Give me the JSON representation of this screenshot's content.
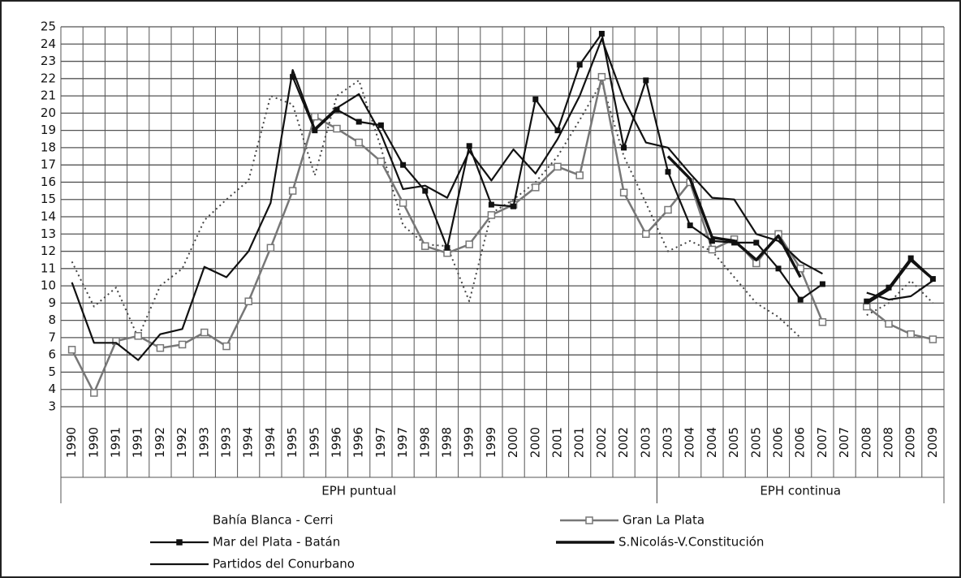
{
  "chart_data": {
    "type": "line",
    "categories": [
      "1990",
      "1990",
      "1991",
      "1991",
      "1992",
      "1992",
      "1993",
      "1993",
      "1994",
      "1994",
      "1995",
      "1995",
      "1996",
      "1996",
      "1997",
      "1997",
      "1998",
      "1998",
      "1999",
      "1999",
      "2000",
      "2000",
      "2001",
      "2001",
      "2002",
      "2002",
      "2003",
      "2003",
      "2004",
      "2004",
      "2005",
      "2005",
      "2006",
      "2006",
      "2007",
      "2007",
      "2008",
      "2008",
      "2009",
      "2009"
    ],
    "x_groups": [
      "EPH puntual",
      "EPH puntual",
      "EPH puntual",
      "EPH puntual",
      "EPH puntual",
      "EPH puntual",
      "EPH puntual",
      "EPH puntual",
      "EPH puntual",
      "EPH puntual",
      "EPH puntual",
      "EPH puntual",
      "EPH puntual",
      "EPH puntual",
      "EPH puntual",
      "EPH puntual",
      "EPH puntual",
      "EPH puntual",
      "EPH puntual",
      "EPH puntual",
      "EPH puntual",
      "EPH puntual",
      "EPH puntual",
      "EPH puntual",
      "EPH puntual",
      "EPH puntual",
      "EPH puntual",
      "EPH continua",
      "EPH continua",
      "EPH continua",
      "EPH continua",
      "EPH continua",
      "EPH continua",
      "EPH continua",
      "EPH continua",
      "EPH continua",
      "EPH continua",
      "EPH continua",
      "EPH continua",
      "EPH continua"
    ],
    "ylim": [
      3,
      25
    ],
    "yticks": [
      3,
      4,
      5,
      6,
      7,
      8,
      9,
      10,
      11,
      12,
      13,
      14,
      15,
      16,
      17,
      18,
      19,
      20,
      21,
      22,
      23,
      24,
      25
    ],
    "grid": true,
    "series": [
      {
        "name": "Bahía Blanca - Cerri",
        "color": "#444444",
        "dash": "2,4",
        "width": 2,
        "marker": "none",
        "values": [
          11.4,
          8.8,
          9.9,
          7.0,
          10.0,
          11.0,
          13.8,
          15.0,
          16.1,
          21.0,
          20.5,
          16.4,
          21.0,
          21.9,
          18.0,
          13.5,
          12.4,
          12.3,
          9.1,
          14.2,
          15.0,
          16.0,
          17.5,
          19.6,
          21.8,
          17.5,
          14.8,
          12.0,
          12.6,
          12.0,
          10.5,
          9.0,
          8.2,
          7.0,
          null,
          null,
          8.3,
          9.0,
          10.3,
          9.0
        ]
      },
      {
        "name": "Gran La Plata",
        "color": "#777777",
        "dash": "none",
        "width": 2.5,
        "marker": "open-square",
        "values": [
          6.3,
          3.8,
          6.8,
          7.1,
          6.4,
          6.6,
          7.3,
          6.5,
          9.1,
          12.2,
          15.5,
          19.8,
          19.1,
          18.3,
          17.2,
          14.8,
          12.3,
          11.9,
          12.4,
          14.1,
          14.7,
          15.7,
          16.9,
          16.4,
          22.1,
          15.4,
          13.0,
          14.4,
          16.0,
          12.1,
          12.7,
          11.3,
          13.0,
          11.0,
          7.9,
          null,
          8.8,
          7.8,
          7.2,
          6.9
        ]
      },
      {
        "name": "Mar del Plata - Batán",
        "color": "#111111",
        "dash": "none",
        "width": 2.2,
        "marker": "square",
        "values": [
          null,
          null,
          null,
          null,
          null,
          null,
          null,
          null,
          null,
          null,
          22.1,
          19.0,
          20.2,
          19.5,
          19.3,
          17.0,
          15.5,
          12.2,
          18.1,
          14.7,
          14.6,
          20.8,
          19.0,
          22.8,
          24.6,
          18.0,
          21.9,
          16.6,
          13.5,
          12.6,
          12.5,
          12.5,
          11.0,
          9.2,
          10.1,
          null,
          9.1,
          9.9,
          11.6,
          10.4
        ]
      },
      {
        "name": "S.Nicolás-V.Constitución",
        "color": "#111111",
        "dash": "none",
        "width": 3.5,
        "marker": "none",
        "values": [
          null,
          null,
          null,
          null,
          null,
          null,
          null,
          null,
          null,
          null,
          null,
          null,
          null,
          null,
          null,
          null,
          null,
          null,
          null,
          null,
          null,
          null,
          null,
          null,
          null,
          null,
          null,
          17.5,
          16.2,
          12.8,
          12.6,
          11.5,
          12.9,
          10.5,
          null,
          null,
          9.0,
          9.8,
          11.5,
          10.4
        ]
      },
      {
        "name": "Partidos del Conurbano",
        "color": "#111111",
        "dash": "none",
        "width": 2.2,
        "marker": "none",
        "values": [
          10.2,
          6.7,
          6.7,
          5.7,
          7.2,
          7.5,
          11.1,
          10.5,
          12.0,
          14.8,
          22.5,
          19.1,
          20.3,
          21.1,
          18.8,
          15.6,
          15.8,
          15.1,
          17.8,
          16.1,
          17.9,
          16.5,
          18.5,
          21.0,
          24.3,
          20.8,
          18.3,
          18.0,
          16.5,
          15.1,
          15.0,
          13.0,
          12.6,
          11.4,
          10.7,
          null,
          9.6,
          9.2,
          9.4,
          10.3
        ]
      }
    ]
  }
}
